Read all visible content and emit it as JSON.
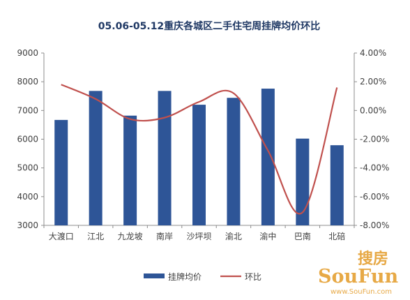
{
  "chart_data": {
    "type": "bar",
    "title": "05.06-05.12重庆各城区二手住宅周挂牌均价环比",
    "categories": [
      "大渡口",
      "江北",
      "九龙坡",
      "南岸",
      "沙坪坝",
      "渝北",
      "渝中",
      "巴南",
      "北碚"
    ],
    "series": [
      {
        "name": "挂牌均价",
        "type": "bar",
        "axis": "left",
        "color": "#2e5597",
        "values": [
          6670,
          7680,
          6820,
          7680,
          7200,
          7440,
          7760,
          6020,
          5790
        ]
      },
      {
        "name": "环比",
        "type": "line",
        "axis": "right",
        "color": "#c0504d",
        "values": [
          1.8,
          0.8,
          -0.6,
          -0.5,
          0.6,
          1.2,
          -2.8,
          -7.1,
          1.6
        ]
      }
    ],
    "y_left": {
      "range": [
        3000,
        9000
      ],
      "ticks": [
        "3000",
        "4000",
        "5000",
        "6000",
        "7000",
        "8000",
        "9000"
      ]
    },
    "y_right": {
      "range": [
        -8,
        4
      ],
      "unit": "%",
      "ticks": [
        "-8.00%",
        "-6.00%",
        "-4.00%",
        "-2.00%",
        "0.00%",
        "2.00%",
        "4.00%"
      ]
    },
    "grid": false,
    "legend": "bottom"
  },
  "watermark": {
    "main": "SouFun",
    "cn": "搜房",
    "url": "www.SouFun.com",
    "color": "#e39a26"
  }
}
